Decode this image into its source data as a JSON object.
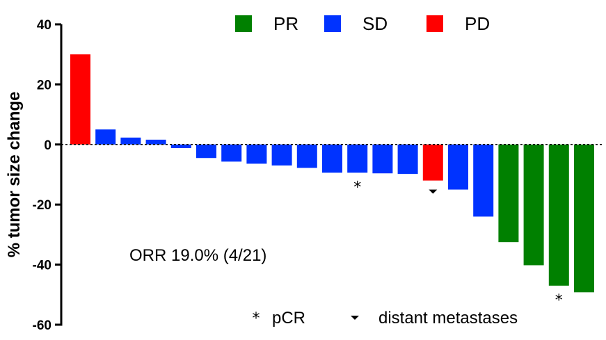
{
  "chart_data": {
    "type": "bar",
    "ylabel": "% tumor size change",
    "ylim": [
      -60,
      40
    ],
    "yticks": [
      40,
      20,
      0,
      -20,
      -40,
      -60
    ],
    "legend": [
      {
        "key": "PR",
        "label": "PR",
        "color": "#008000"
      },
      {
        "key": "SD",
        "label": "SD",
        "color": "#0033ff"
      },
      {
        "key": "PD",
        "label": "PD",
        "color": "#ff0000"
      }
    ],
    "bars": [
      {
        "value": 30,
        "response": "PD"
      },
      {
        "value": 5,
        "response": "SD"
      },
      {
        "value": 2.3,
        "response": "SD"
      },
      {
        "value": 1.6,
        "response": "SD"
      },
      {
        "value": -1.2,
        "response": "SD"
      },
      {
        "value": -4.5,
        "response": "SD"
      },
      {
        "value": -5.7,
        "response": "SD"
      },
      {
        "value": -6.4,
        "response": "SD"
      },
      {
        "value": -7,
        "response": "SD"
      },
      {
        "value": -7.8,
        "response": "SD"
      },
      {
        "value": -9.4,
        "response": "SD"
      },
      {
        "value": -9.4,
        "response": "SD",
        "marker": "pCR"
      },
      {
        "value": -9.6,
        "response": "SD"
      },
      {
        "value": -9.8,
        "response": "SD"
      },
      {
        "value": -12,
        "response": "PD",
        "marker": "distant metastases"
      },
      {
        "value": -15,
        "response": "SD"
      },
      {
        "value": -24,
        "response": "SD"
      },
      {
        "value": -32.5,
        "response": "PR"
      },
      {
        "value": -40.2,
        "response": "PR"
      },
      {
        "value": -47,
        "response": "PR",
        "marker": "pCR"
      },
      {
        "value": -49.2,
        "response": "PR"
      }
    ],
    "annotation": "ORR 19.0% (4/21)",
    "marker_legend": [
      {
        "symbol": "*",
        "label": "pCR"
      },
      {
        "symbol": "▼",
        "label": "distant metastases"
      }
    ],
    "reference_line": {
      "y": 0,
      "style": "dotted"
    }
  }
}
